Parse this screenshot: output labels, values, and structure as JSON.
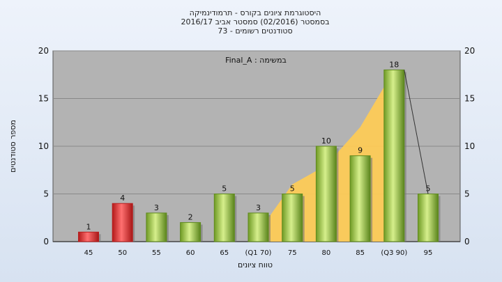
{
  "chart_data": {
    "type": "bar",
    "title_lines": [
      "היסטוגרמת ציונים בקורס - תרמודינמיקה",
      "בסמסטר  (02/2016)  סמסטר אביב 2016/17",
      "סטודנטים רשומים - 73"
    ],
    "categories": [
      "45",
      "50",
      "55",
      "60",
      "65",
      "(Q1 70)",
      "75",
      "80",
      "85",
      "(Q3 90)",
      "95"
    ],
    "values": [
      1,
      4,
      3,
      2,
      5,
      3,
      5,
      10,
      9,
      18,
      5
    ],
    "bar_colors": [
      "red",
      "red",
      "green",
      "green",
      "green",
      "green",
      "green",
      "green",
      "green",
      "green",
      "green"
    ],
    "area_values": [
      null,
      null,
      null,
      null,
      null,
      1,
      6,
      8,
      12,
      18,
      null
    ],
    "legend_text": "Final_A : במשימה",
    "xlabel": "טווח ציונים",
    "ylabel": "מספר סטודנטים",
    "ylim": [
      0,
      20
    ],
    "yticks": [
      0,
      5,
      10,
      15,
      20
    ],
    "grid": true,
    "colors": {
      "plot_bg": "#b3b3b3",
      "grid": "#888888",
      "red_light": "#ff6a6a",
      "red_dark": "#b81d1d",
      "green_light": "#d3ec8a",
      "green_dark": "#5f8a1e",
      "area": "#ffcc55"
    }
  }
}
